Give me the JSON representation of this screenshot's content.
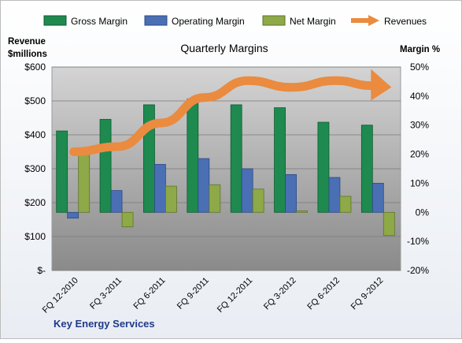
{
  "chart_data": {
    "type": "bar",
    "title": "Quarterly Margins",
    "company": "Key Energy Services",
    "categories": [
      "FQ 12-2010",
      "FQ 3-2011",
      "FQ 6-2011",
      "FQ 9-2011",
      "FQ 12-2011",
      "FQ 3-2012",
      "FQ 6-2012",
      "FQ 9-2012"
    ],
    "y_left": {
      "label_line1": "Revenue",
      "label_line2": "$millions",
      "ticks": [
        "$-",
        "$100",
        "$200",
        "$300",
        "$400",
        "$500",
        "$600"
      ],
      "range": [
        0,
        600
      ]
    },
    "y_right": {
      "label": "Margin %",
      "ticks": [
        "-20%",
        "-10%",
        "0%",
        "10%",
        "20%",
        "30%",
        "40%",
        "50%"
      ],
      "range": [
        -20,
        50
      ]
    },
    "legend_position": "top",
    "grid": true,
    "series": [
      {
        "name": "Gross Margin",
        "type": "bar",
        "axis": "right",
        "color": "#1e8a4f",
        "values": [
          28,
          32,
          37,
          39,
          37,
          36,
          31,
          30
        ]
      },
      {
        "name": "Operating Margin",
        "type": "bar",
        "axis": "right",
        "color": "#4a6fb5",
        "values": [
          -2,
          7.5,
          16.5,
          18.5,
          15,
          13,
          12,
          10
        ]
      },
      {
        "name": "Net Margin",
        "type": "bar",
        "axis": "right",
        "color": "#8ea948",
        "values": [
          22,
          -5,
          9,
          9.5,
          8,
          0.5,
          5.5,
          -8
        ]
      },
      {
        "name": "Revenues",
        "type": "line",
        "axis": "left",
        "color": "#ea8b3f",
        "values": [
          350,
          365,
          435,
          510,
          560,
          540,
          560,
          545
        ]
      }
    ]
  }
}
